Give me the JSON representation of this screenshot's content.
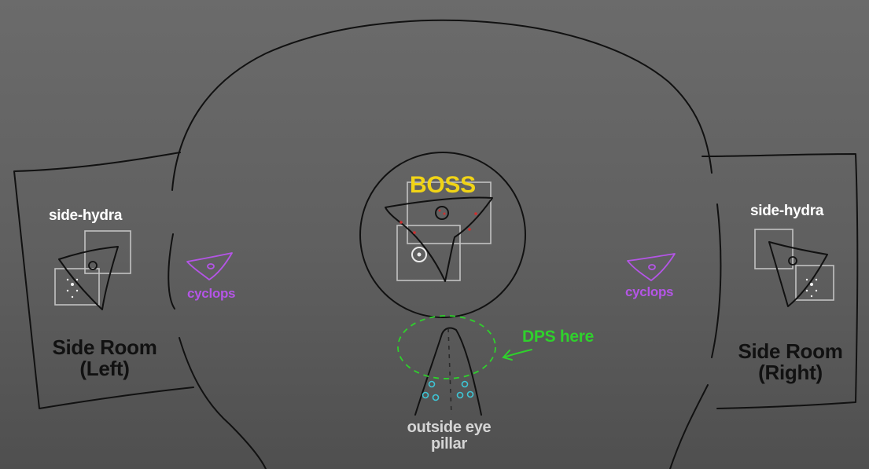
{
  "labels": {
    "boss": "BOSS",
    "side_hydra_left": "side-hydra",
    "side_hydra_right": "side-hydra",
    "cyclops_left": "cyclops",
    "cyclops_right": "cyclops",
    "side_room_left_line1": "Side Room",
    "side_room_left_line2": "(Left)",
    "side_room_right_line1": "Side Room",
    "side_room_right_line2": "(Right)",
    "dps_here": "DPS here",
    "pillar_line1": "outside eye",
    "pillar_line2": "pillar"
  },
  "colors": {
    "background": "#656565",
    "outline": "#111111",
    "boss_text": "#f1d416",
    "hydra_text": "#ffffff",
    "cyclops": "#b455e6",
    "dps": "#2fd12c",
    "pillar_text": "#d5d5d5",
    "party_markers": "#3ec6d6",
    "boss_markers": "#cf3030"
  }
}
